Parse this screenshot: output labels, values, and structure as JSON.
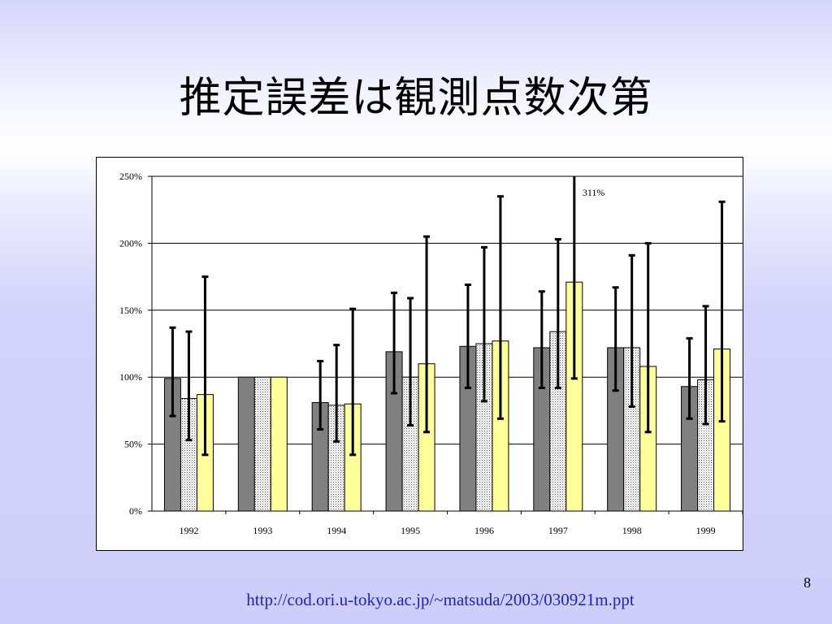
{
  "slide": {
    "title": "推定誤差は観測点数次第",
    "page_number": "8",
    "source_url": "http://cod.ori.u-tokyo.ac.jp/~matsuda/2003/030921m.ppt"
  },
  "chart_data": {
    "type": "bar",
    "title": "",
    "xlabel": "",
    "ylabel": "",
    "categories": [
      "1992",
      "1993",
      "1994",
      "1995",
      "1996",
      "1997",
      "1998",
      "1999"
    ],
    "ylim": [
      0,
      250
    ],
    "yticks": [
      "0%",
      "50%",
      "100%",
      "150%",
      "200%",
      "250%"
    ],
    "grid": true,
    "annotation": "311%",
    "colors": [
      "#808080",
      "#ffffff",
      "#ffff99"
    ],
    "series": [
      {
        "values": [
          99,
          100,
          81,
          119,
          123,
          122,
          122,
          93
        ],
        "error_low": [
          71,
          100,
          61,
          88,
          92,
          92,
          90,
          69
        ],
        "error_high": [
          137,
          100,
          112,
          163,
          169,
          164,
          167,
          129
        ]
      },
      {
        "values": [
          84,
          100,
          79,
          100,
          125,
          134,
          122,
          98
        ],
        "error_low": [
          53,
          100,
          52,
          64,
          82,
          92,
          78,
          65
        ],
        "error_high": [
          134,
          100,
          124,
          159,
          197,
          203,
          191,
          153
        ]
      },
      {
        "values": [
          87,
          100,
          80,
          110,
          127,
          171,
          108,
          121
        ],
        "error_low": [
          42,
          100,
          42,
          59,
          69,
          99,
          59,
          67
        ],
        "error_high": [
          175,
          100,
          151,
          205,
          235,
          311,
          200,
          231
        ]
      }
    ]
  }
}
